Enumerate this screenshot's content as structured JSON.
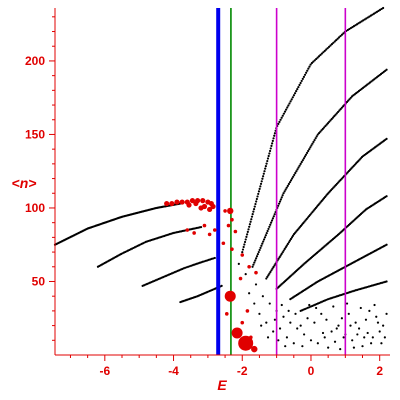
{
  "chart_data": {
    "type": "scatter",
    "title": "",
    "xlabel": "E",
    "ylabel": "<n>",
    "xlim": [
      -7.45,
      2.3
    ],
    "ylim": [
      0,
      236
    ],
    "x_ticks": [
      -6,
      -4,
      -2,
      0,
      2
    ],
    "y_ticks": [
      50,
      100,
      150,
      200
    ],
    "tick_labels_x": [
      "-6",
      "-4",
      "-2",
      "0",
      "2"
    ],
    "tick_labels_y": [
      "50",
      "100",
      "150",
      "200"
    ],
    "grid": false,
    "legend": "none",
    "colors": {
      "axis": "#e00000",
      "black_points": "#000000",
      "red_points": "#e00000",
      "blue_line": "#0000ee",
      "green_line": "#008800",
      "magenta_line": "#cc00cc"
    },
    "vertical_lines": [
      {
        "x": -2.7,
        "color": "blue",
        "width": "thick"
      },
      {
        "x": -2.33,
        "color": "green",
        "width": "thin"
      },
      {
        "x": -1.0,
        "color": "magenta",
        "width": "thin"
      },
      {
        "x": 1.0,
        "color": "magenta",
        "width": "thin"
      }
    ],
    "black_bands": [
      {
        "points": [
          [
            -7.45,
            75
          ],
          [
            -6.5,
            86
          ],
          [
            -5.5,
            94
          ],
          [
            -4.5,
            100
          ],
          [
            -3.8,
            103
          ]
        ],
        "n": 110
      },
      {
        "points": [
          [
            -6.2,
            60
          ],
          [
            -5.5,
            69
          ],
          [
            -4.8,
            77
          ],
          [
            -4.0,
            83
          ],
          [
            -3.2,
            87
          ]
        ],
        "n": 75
      },
      {
        "points": [
          [
            -4.9,
            47
          ],
          [
            -4.3,
            53
          ],
          [
            -3.7,
            59
          ],
          [
            -3.2,
            63
          ],
          [
            -2.8,
            66
          ]
        ],
        "n": 50
      },
      {
        "points": [
          [
            -3.8,
            36
          ],
          [
            -3.3,
            40
          ],
          [
            -2.9,
            44
          ],
          [
            -2.6,
            47
          ]
        ],
        "n": 32
      },
      {
        "points": [
          [
            -2.0,
            70
          ],
          [
            -1.0,
            155
          ],
          [
            0.0,
            198
          ],
          [
            1.0,
            220
          ],
          [
            2.1,
            236
          ]
        ],
        "n": 130
      },
      {
        "points": [
          [
            -1.7,
            60
          ],
          [
            -0.8,
            110
          ],
          [
            0.2,
            150
          ],
          [
            1.2,
            176
          ],
          [
            2.2,
            194
          ]
        ],
        "n": 120
      },
      {
        "points": [
          [
            -1.3,
            52
          ],
          [
            -0.5,
            82
          ],
          [
            0.5,
            110
          ],
          [
            1.5,
            135
          ],
          [
            2.2,
            147
          ]
        ],
        "n": 105
      },
      {
        "points": [
          [
            -1.0,
            45
          ],
          [
            -0.2,
            62
          ],
          [
            0.8,
            82
          ],
          [
            1.6,
            99
          ],
          [
            2.2,
            108
          ]
        ],
        "n": 90
      },
      {
        "points": [
          [
            -0.6,
            38
          ],
          [
            0.2,
            50
          ],
          [
            1.0,
            60
          ],
          [
            1.8,
            70
          ],
          [
            2.2,
            75
          ]
        ],
        "n": 75
      },
      {
        "points": [
          [
            -0.3,
            30
          ],
          [
            0.5,
            38
          ],
          [
            1.3,
            44
          ],
          [
            2.2,
            50
          ]
        ],
        "n": 60
      }
    ],
    "black_scatter": [
      [
        -2.1,
        62
      ],
      [
        -1.9,
        55
      ],
      [
        -1.6,
        48
      ],
      [
        -1.4,
        40
      ],
      [
        -1.2,
        35
      ],
      [
        -1.0,
        30
      ],
      [
        -0.8,
        26
      ],
      [
        -0.6,
        22
      ],
      [
        -0.4,
        18
      ],
      [
        -0.2,
        14
      ],
      [
        0.0,
        10
      ],
      [
        0.2,
        8
      ],
      [
        0.4,
        12
      ],
      [
        0.6,
        16
      ],
      [
        0.8,
        20
      ],
      [
        1.0,
        14
      ],
      [
        1.2,
        10
      ],
      [
        1.4,
        18
      ],
      [
        1.6,
        24
      ],
      [
        1.8,
        12
      ],
      [
        2.0,
        16
      ],
      [
        -0.9,
        18
      ],
      [
        -0.7,
        12
      ],
      [
        -0.5,
        8
      ],
      [
        -0.3,
        20
      ],
      [
        -0.1,
        25
      ],
      [
        0.1,
        22
      ],
      [
        0.3,
        28
      ],
      [
        0.5,
        5
      ],
      [
        0.7,
        9
      ],
      [
        0.9,
        25
      ],
      [
        1.1,
        28
      ],
      [
        1.3,
        22
      ],
      [
        1.5,
        6
      ],
      [
        1.7,
        30
      ],
      [
        1.9,
        26
      ],
      [
        2.1,
        20
      ],
      [
        -1.5,
        28
      ],
      [
        -1.3,
        22
      ],
      [
        -1.1,
        16
      ],
      [
        -0.95,
        10
      ],
      [
        -0.75,
        6
      ],
      [
        0.15,
        32
      ],
      [
        0.35,
        15
      ],
      [
        0.65,
        33
      ],
      [
        0.85,
        4
      ],
      [
        1.05,
        35
      ],
      [
        1.25,
        5
      ],
      [
        1.45,
        32
      ],
      [
        1.65,
        15
      ],
      [
        1.85,
        34
      ],
      [
        2.05,
        8
      ],
      [
        2.2,
        28
      ],
      [
        -1.8,
        42
      ],
      [
        -1.65,
        35
      ],
      [
        -1.45,
        20
      ],
      [
        -1.25,
        12
      ],
      [
        -1.05,
        24
      ],
      [
        -0.85,
        34
      ],
      [
        -0.65,
        30
      ],
      [
        -0.45,
        28
      ],
      [
        -0.25,
        6
      ],
      [
        -0.05,
        34
      ],
      [
        0.45,
        24
      ],
      [
        0.75,
        18
      ],
      [
        0.95,
        12
      ],
      [
        1.15,
        20
      ],
      [
        1.35,
        14
      ],
      [
        1.55,
        12
      ],
      [
        1.75,
        8
      ],
      [
        1.95,
        22
      ],
      [
        2.15,
        12
      ]
    ],
    "red_cluster": [
      [
        -4.2,
        103
      ],
      [
        -4.05,
        103
      ],
      [
        -3.9,
        104
      ],
      [
        -3.75,
        104
      ],
      [
        -3.6,
        104
      ],
      [
        -3.45,
        105
      ],
      [
        -3.3,
        105
      ],
      [
        -3.15,
        105
      ],
      [
        -3.0,
        104
      ],
      [
        -2.9,
        103
      ],
      [
        -2.85,
        101
      ],
      [
        -3.1,
        101
      ],
      [
        -3.35,
        103
      ],
      [
        -3.55,
        102
      ],
      [
        -2.95,
        99
      ],
      [
        -3.2,
        100
      ]
    ],
    "red_points": [
      {
        "x": -3.6,
        "y": 85,
        "size": "small"
      },
      {
        "x": -3.4,
        "y": 83,
        "size": "small"
      },
      {
        "x": -3.1,
        "y": 88,
        "size": "small"
      },
      {
        "x": -2.95,
        "y": 82,
        "size": "small"
      },
      {
        "x": -2.8,
        "y": 85,
        "size": "small"
      },
      {
        "x": -2.5,
        "y": 98,
        "size": "small"
      },
      {
        "x": -2.35,
        "y": 98,
        "size": "medium"
      },
      {
        "x": -2.3,
        "y": 92,
        "size": "small"
      },
      {
        "x": -2.4,
        "y": 88,
        "size": "small"
      },
      {
        "x": -2.2,
        "y": 84,
        "size": "small"
      },
      {
        "x": -2.55,
        "y": 76,
        "size": "small"
      },
      {
        "x": -2.3,
        "y": 72,
        "size": "small"
      },
      {
        "x": -2.0,
        "y": 68,
        "size": "small"
      },
      {
        "x": -1.8,
        "y": 60,
        "size": "small"
      },
      {
        "x": -1.6,
        "y": 56,
        "size": "small"
      },
      {
        "x": -2.05,
        "y": 52,
        "size": "small"
      },
      {
        "x": -2.35,
        "y": 40,
        "size": "large"
      },
      {
        "x": -2.15,
        "y": 15,
        "size": "large"
      },
      {
        "x": -1.9,
        "y": 8,
        "size": "xlarge"
      },
      {
        "x": -1.65,
        "y": 4,
        "size": "medium"
      },
      {
        "x": -2.0,
        "y": 22,
        "size": "small"
      },
      {
        "x": -1.75,
        "y": 12,
        "size": "small"
      },
      {
        "x": -2.45,
        "y": 28,
        "size": "small"
      },
      {
        "x": -1.85,
        "y": 30,
        "size": "small"
      }
    ]
  }
}
